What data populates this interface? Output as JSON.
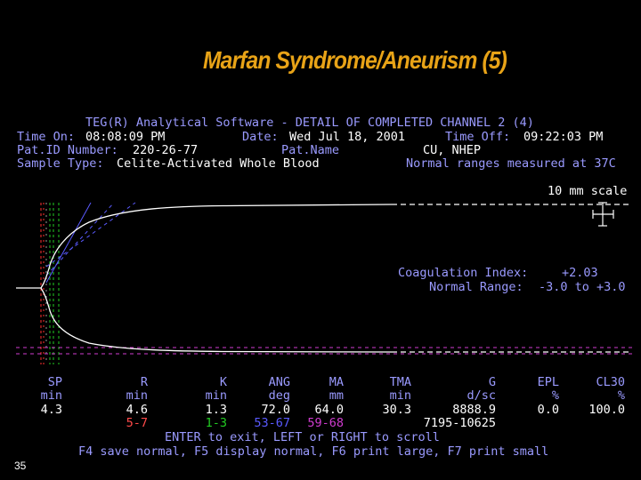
{
  "slide_title": "Marfan Syndrome/Aneurism (5)",
  "header": {
    "software_line": "TEG(R) Analytical Software - DETAIL OF COMPLETED CHANNEL 2 (4)",
    "time_on_label": "Time On:",
    "time_on_value": "08:08:09 PM",
    "date_label": "Date:",
    "date_value": "Wed Jul 18, 2001",
    "time_off_label": "Time Off:",
    "time_off_value": "09:22:03 PM",
    "pat_id_label": "Pat.ID Number:",
    "pat_id_value": "220-26-77",
    "pat_name_label": "Pat.Name",
    "pat_name_value": "CU, NHEP",
    "sample_label": "Sample Type:",
    "sample_value": "Celite-Activated Whole Blood",
    "normal_ranges_note": "Normal ranges measured at 37C"
  },
  "scale_label": "10 mm scale",
  "coag": {
    "index_label": "Coagulation Index:",
    "index_value": "+2.03",
    "range_label": "Normal Range:",
    "range_value": "-3.0 to +3.0"
  },
  "params": [
    {
      "name": "SP",
      "unit": "min",
      "value": "4.3",
      "normal": "",
      "normal_color": "#ffffff"
    },
    {
      "name": "R",
      "unit": "min",
      "value": "4.6",
      "normal": "5-7",
      "normal_color": "#ff4a4a"
    },
    {
      "name": "K",
      "unit": "min",
      "value": "1.3",
      "normal": "1-3",
      "normal_color": "#22cc22"
    },
    {
      "name": "ANG",
      "unit": "deg",
      "value": "72.0",
      "normal": "53-67",
      "normal_color": "#5a5aff"
    },
    {
      "name": "MA",
      "unit": "mm",
      "value": "64.0",
      "normal": "59-68",
      "normal_color": "#d03cd0"
    },
    {
      "name": "TMA",
      "unit": "min",
      "value": "30.3",
      "normal": "",
      "normal_color": "#ffffff"
    },
    {
      "name": "G",
      "unit": "d/sc",
      "value": "8888.9",
      "normal": "7195-10625",
      "normal_color": "#ffffff"
    },
    {
      "name": "EPL",
      "unit": "%",
      "value": "0.0",
      "normal": "",
      "normal_color": "#ffffff"
    },
    {
      "name": "CL30",
      "unit": "%",
      "value": "100.0",
      "normal": "",
      "normal_color": "#ffffff"
    }
  ],
  "footer": {
    "line1": "ENTER to exit, LEFT or RIGHT to scroll",
    "line2": "F4 save normal, F5 display normal, F6 print large, F7 print small"
  },
  "slide_number": "35",
  "colors": {
    "title": "#e8a317",
    "label": "#9a9aff",
    "value": "#ffffff",
    "trace": "#ffffff"
  }
}
